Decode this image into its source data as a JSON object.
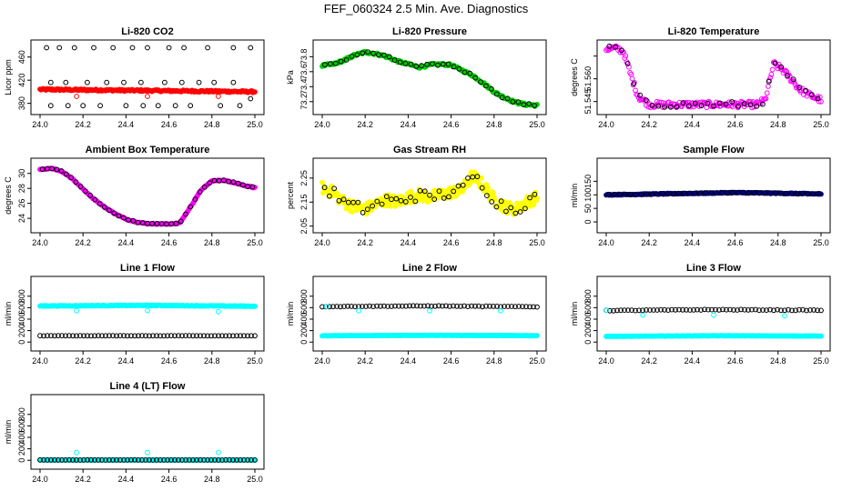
{
  "title": "FEF_060324  2.5 Min. Ave. Diagnostics",
  "chart_data": [
    {
      "type": "scatter",
      "title": "Li-820 CO2",
      "ylabel": "Licor ppm",
      "xlim": [
        24.0,
        25.0
      ],
      "ylim": [
        370,
        480
      ],
      "xticks": [
        24.0,
        24.2,
        24.4,
        24.6,
        24.8,
        25.0
      ],
      "yticks": [
        380,
        420,
        460
      ],
      "series": [
        {
          "name": "main",
          "color": "#ff0000",
          "filled": true,
          "x": [
            24.0,
            25.0
          ],
          "y": [
            404,
            400
          ],
          "noise": 1.5,
          "n": 220
        },
        {
          "name": "outliers",
          "color": "#000000",
          "filled": false,
          "x": [
            24.03,
            24.05,
            24.09,
            24.13,
            24.16,
            24.2,
            24.25,
            24.28,
            24.34,
            24.4,
            24.43,
            24.48,
            24.5,
            24.55,
            24.6,
            24.63,
            24.67,
            24.7,
            24.78,
            24.84,
            24.9,
            24.93,
            24.98,
            24.05,
            24.12,
            24.22,
            24.31,
            24.39,
            24.47,
            24.58,
            24.66,
            24.74,
            24.81,
            24.9,
            24.98
          ],
          "y": [
            476,
            376,
            476,
            376,
            476,
            376,
            476,
            376,
            476,
            376,
            476,
            376,
            476,
            376,
            476,
            376,
            476,
            376,
            476,
            376,
            476,
            376,
            476,
            416,
            416,
            416,
            416,
            416,
            416,
            416,
            416,
            416,
            416,
            416,
            388
          ]
        },
        {
          "name": "red-outliers",
          "color": "#ff0000",
          "filled": false,
          "x": [
            24.17,
            24.5,
            24.83
          ],
          "y": [
            392,
            392,
            392
          ]
        }
      ]
    },
    {
      "type": "scatter",
      "title": "Li-820 Pressure",
      "ylabel": "kPa",
      "xlim": [
        24.0,
        25.0
      ],
      "ylim": [
        73.1,
        73.95
      ],
      "xticks": [
        24.0,
        24.2,
        24.4,
        24.6,
        24.8,
        25.0
      ],
      "yticks": [
        73.2,
        73.4,
        73.6,
        73.8
      ],
      "series": [
        {
          "name": "main",
          "color": "#00cc00",
          "filled": true,
          "x": [
            24.0,
            24.05,
            24.1,
            24.15,
            24.2,
            24.25,
            24.3,
            24.35,
            24.4,
            24.45,
            24.5,
            24.55,
            24.6,
            24.65,
            24.7,
            24.75,
            24.8,
            24.85,
            24.9,
            24.95,
            25.0
          ],
          "y": [
            73.68,
            73.7,
            73.75,
            73.82,
            73.86,
            73.84,
            73.8,
            73.74,
            73.7,
            73.66,
            73.69,
            73.7,
            73.69,
            73.62,
            73.55,
            73.45,
            73.33,
            73.25,
            73.19,
            73.16,
            73.15
          ],
          "noise": 0.015,
          "n": 200
        },
        {
          "name": "black",
          "color": "#000000",
          "filled": false,
          "follow": 0,
          "n": 40
        }
      ]
    },
    {
      "type": "scatter",
      "title": "Li-820 Temperature",
      "ylabel": "degrees C",
      "xlim": [
        24.0,
        25.0
      ],
      "ylim": [
        51.54,
        51.582
      ],
      "xticks": [
        24.0,
        24.2,
        24.4,
        24.6,
        24.8,
        25.0
      ],
      "yticks": [
        51.545,
        51.56,
        51.575
      ],
      "ytickdisp": [
        "51.545",
        "51.560",
        ""
      ],
      "series": [
        {
          "name": "main",
          "color": "#ff00ff",
          "filled": false,
          "x": [
            24.0,
            24.05,
            24.08,
            24.12,
            24.15,
            24.2,
            24.3,
            24.5,
            24.7,
            24.74,
            24.78,
            24.82,
            24.86,
            24.9,
            24.95,
            25.0
          ],
          "y": [
            51.58,
            51.58,
            51.578,
            51.56,
            51.548,
            51.543,
            51.543,
            51.543,
            51.543,
            51.546,
            51.57,
            51.566,
            51.56,
            51.553,
            51.549,
            51.546
          ],
          "noise": 0.002,
          "n": 200
        },
        {
          "name": "black",
          "color": "#000000",
          "filled": false,
          "follow": 0,
          "n": 35
        }
      ]
    },
    {
      "type": "scatter",
      "title": "Ambient Box Temperature",
      "ylabel": "degrees C",
      "xlim": [
        24.0,
        25.0
      ],
      "ylim": [
        22.8,
        31.3
      ],
      "xticks": [
        24.0,
        24.2,
        24.4,
        24.6,
        24.8,
        25.0
      ],
      "yticks": [
        24,
        26,
        28,
        30
      ],
      "series": [
        {
          "name": "main",
          "color": "#ff00ff",
          "filled": true,
          "x": [
            24.0,
            24.05,
            24.1,
            24.15,
            24.2,
            24.25,
            24.3,
            24.35,
            24.4,
            24.45,
            24.5,
            24.55,
            24.6,
            24.65,
            24.7,
            24.75,
            24.8,
            24.85,
            24.9,
            24.95,
            25.0
          ],
          "y": [
            30.5,
            30.7,
            30.3,
            29.3,
            27.9,
            26.6,
            25.5,
            24.6,
            23.9,
            23.5,
            23.3,
            23.25,
            23.25,
            23.35,
            25.5,
            27.8,
            29.0,
            29.1,
            28.8,
            28.4,
            28.1
          ],
          "noise": 0.05,
          "n": 200
        },
        {
          "name": "black",
          "color": "#000000",
          "filled": false,
          "follow": 0,
          "n": 45
        }
      ]
    },
    {
      "type": "scatter",
      "title": "Gas Stream RH",
      "ylabel": "percent",
      "xlim": [
        24.0,
        25.0
      ],
      "ylim": [
        2.045,
        2.31
      ],
      "xticks": [
        24.0,
        24.2,
        24.4,
        24.6,
        24.8,
        25.0
      ],
      "yticks": [
        2.05,
        2.15,
        2.25
      ],
      "series": [
        {
          "name": "main",
          "color": "#ffff00",
          "filled": true,
          "x": [
            24.0,
            24.05,
            24.1,
            24.15,
            24.2,
            24.25,
            24.3,
            24.35,
            24.4,
            24.45,
            24.5,
            24.55,
            24.6,
            24.65,
            24.7,
            24.75,
            24.8,
            24.85,
            24.9,
            24.95,
            25.0
          ],
          "y": [
            2.21,
            2.19,
            2.15,
            2.13,
            2.12,
            2.14,
            2.16,
            2.15,
            2.17,
            2.18,
            2.17,
            2.18,
            2.19,
            2.2,
            2.26,
            2.22,
            2.16,
            2.13,
            2.12,
            2.15,
            2.17
          ],
          "noise": 0.025,
          "n": 260
        },
        {
          "name": "black",
          "color": "#000000",
          "filled": false,
          "follow": 0,
          "n": 45
        }
      ]
    },
    {
      "type": "scatter",
      "title": "Sample Flow",
      "ylabel": "ml/min",
      "xlim": [
        24.0,
        25.0
      ],
      "ylim": [
        -20,
        215
      ],
      "xticks": [
        24.0,
        24.2,
        24.4,
        24.6,
        24.8,
        25.0
      ],
      "yticks": [
        0,
        50,
        100,
        150
      ],
      "series": [
        {
          "name": "main",
          "color": "#00008b",
          "filled": true,
          "x": [
            24.0,
            24.3,
            24.6,
            24.8,
            25.0
          ],
          "y": [
            100,
            104,
            108,
            106,
            103
          ],
          "noise": 1.5,
          "n": 220
        },
        {
          "name": "black",
          "color": "#000000",
          "filled": false,
          "follow": 0,
          "n": 40
        }
      ]
    },
    {
      "type": "scatter",
      "title": "Line 1 Flow",
      "ylabel": "ml/min",
      "xlim": [
        24.0,
        25.0
      ],
      "ylim": [
        -60,
        1050
      ],
      "xticks": [
        24.0,
        24.2,
        24.4,
        24.6,
        24.8,
        25.0
      ],
      "yticks": [
        0,
        200,
        400,
        600,
        800
      ],
      "series": [
        {
          "name": "cyan",
          "color": "#00ffff",
          "filled": true,
          "x": [
            24.0,
            24.5,
            25.0
          ],
          "y": [
            630,
            640,
            625
          ],
          "noise": 6,
          "n": 220
        },
        {
          "name": "black",
          "color": "#000000",
          "filled": false,
          "x": [
            24.0,
            25.0
          ],
          "y": [
            110,
            110
          ],
          "noise": 2,
          "n": 60
        },
        {
          "name": "cyan-dips",
          "color": "#00ffff",
          "filled": false,
          "x": [
            24.17,
            24.5,
            24.83
          ],
          "y": [
            545,
            550,
            530
          ]
        }
      ]
    },
    {
      "type": "scatter",
      "title": "Line 2 Flow",
      "ylabel": "ml/min",
      "xlim": [
        24.0,
        25.0
      ],
      "ylim": [
        -60,
        1050
      ],
      "xticks": [
        24.0,
        24.2,
        24.4,
        24.6,
        24.8,
        25.0
      ],
      "yticks": [
        0,
        200,
        400,
        600,
        800
      ],
      "series": [
        {
          "name": "cyan",
          "color": "#00ffff",
          "filled": true,
          "x": [
            24.0,
            24.5,
            25.0
          ],
          "y": [
            110,
            118,
            112
          ],
          "noise": 3,
          "n": 220
        },
        {
          "name": "black",
          "color": "#000000",
          "filled": false,
          "x": [
            24.0,
            24.5,
            25.0
          ],
          "y": [
            620,
            630,
            615
          ],
          "noise": 5,
          "n": 60
        },
        {
          "name": "cyan-dips",
          "color": "#00ffff",
          "filled": false,
          "x": [
            24.02,
            24.17,
            24.5,
            24.83
          ],
          "y": [
            620,
            545,
            545,
            545
          ]
        }
      ]
    },
    {
      "type": "scatter",
      "title": "Line 3 Flow",
      "ylabel": "ml/min",
      "xlim": [
        24.0,
        25.0
      ],
      "ylim": [
        -60,
        1050
      ],
      "xticks": [
        24.0,
        24.2,
        24.4,
        24.6,
        24.8,
        25.0
      ],
      "yticks": [
        0,
        200,
        400,
        600,
        800
      ],
      "series": [
        {
          "name": "cyan",
          "color": "#00ffff",
          "filled": true,
          "x": [
            24.0,
            24.5,
            25.0
          ],
          "y": [
            100,
            110,
            105
          ],
          "noise": 3,
          "n": 220
        },
        {
          "name": "black",
          "color": "#000000",
          "filled": false,
          "x": [
            24.0,
            24.5,
            25.0
          ],
          "y": [
            550,
            565,
            555
          ],
          "noise": 6,
          "n": 60
        },
        {
          "name": "cyan-dips",
          "color": "#00ffff",
          "filled": false,
          "x": [
            24.0,
            24.17,
            24.5,
            24.83
          ],
          "y": [
            555,
            470,
            470,
            460
          ]
        }
      ]
    },
    {
      "type": "scatter",
      "title": "Line 4 (LT) Flow",
      "ylabel": "ml/min",
      "xlim": [
        24.0,
        25.0
      ],
      "ylim": [
        -60,
        1050
      ],
      "xticks": [
        24.0,
        24.2,
        24.4,
        24.6,
        24.8,
        25.0
      ],
      "yticks": [
        0,
        200,
        400,
        600,
        800
      ],
      "series": [
        {
          "name": "cyan",
          "color": "#00ffff",
          "filled": true,
          "x": [
            24.0,
            25.0
          ],
          "y": [
            5,
            5
          ],
          "noise": 1,
          "n": 220
        },
        {
          "name": "black",
          "color": "#000000",
          "filled": false,
          "x": [
            24.0,
            25.0
          ],
          "y": [
            5,
            5
          ],
          "noise": 1,
          "n": 60
        },
        {
          "name": "cyan-spikes",
          "color": "#00ffff",
          "filled": false,
          "x": [
            24.17,
            24.5,
            24.83
          ],
          "y": [
            135,
            135,
            135
          ]
        }
      ]
    }
  ]
}
